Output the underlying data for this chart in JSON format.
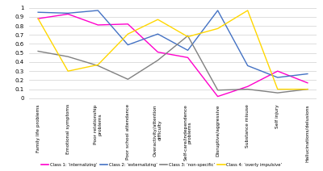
{
  "categories": [
    "Family life problems",
    "Emotional symptoms",
    "Poor relationship\nproblems",
    "Poor school attendance",
    "Overactivity/attention\ndifficulty",
    "Self-care/independence\nproblems",
    "Disruptive/aggressive",
    "Substance misuse",
    "Self injury",
    "Hallucinations/delusions"
  ],
  "class1": [
    0.88,
    0.93,
    0.81,
    0.82,
    0.51,
    0.45,
    0.02,
    0.13,
    0.3,
    0.17
  ],
  "class2": [
    0.95,
    0.94,
    0.97,
    0.59,
    0.71,
    0.53,
    0.97,
    0.36,
    0.23,
    0.27
  ],
  "class3": [
    0.52,
    0.46,
    0.36,
    0.21,
    0.42,
    0.69,
    0.09,
    0.1,
    0.06,
    0.1
  ],
  "class4": [
    0.88,
    0.3,
    0.37,
    0.71,
    0.87,
    0.68,
    0.77,
    0.97,
    0.1,
    0.1
  ],
  "class1_color": "#FF00CC",
  "class2_color": "#4472C4",
  "class3_color": "#808080",
  "class4_color": "#FFD700",
  "legend_labels": [
    "Class 1: ‘internalizing’",
    "Class 2: ‘externalizing’",
    "Class 3: ‘non-specific’",
    "Class 4: ‘overly impulsive’"
  ],
  "ylim": [
    0,
    1.0
  ],
  "yticks": [
    0,
    0.1,
    0.2,
    0.3,
    0.4,
    0.5,
    0.6,
    0.7,
    0.8,
    0.9,
    1
  ]
}
